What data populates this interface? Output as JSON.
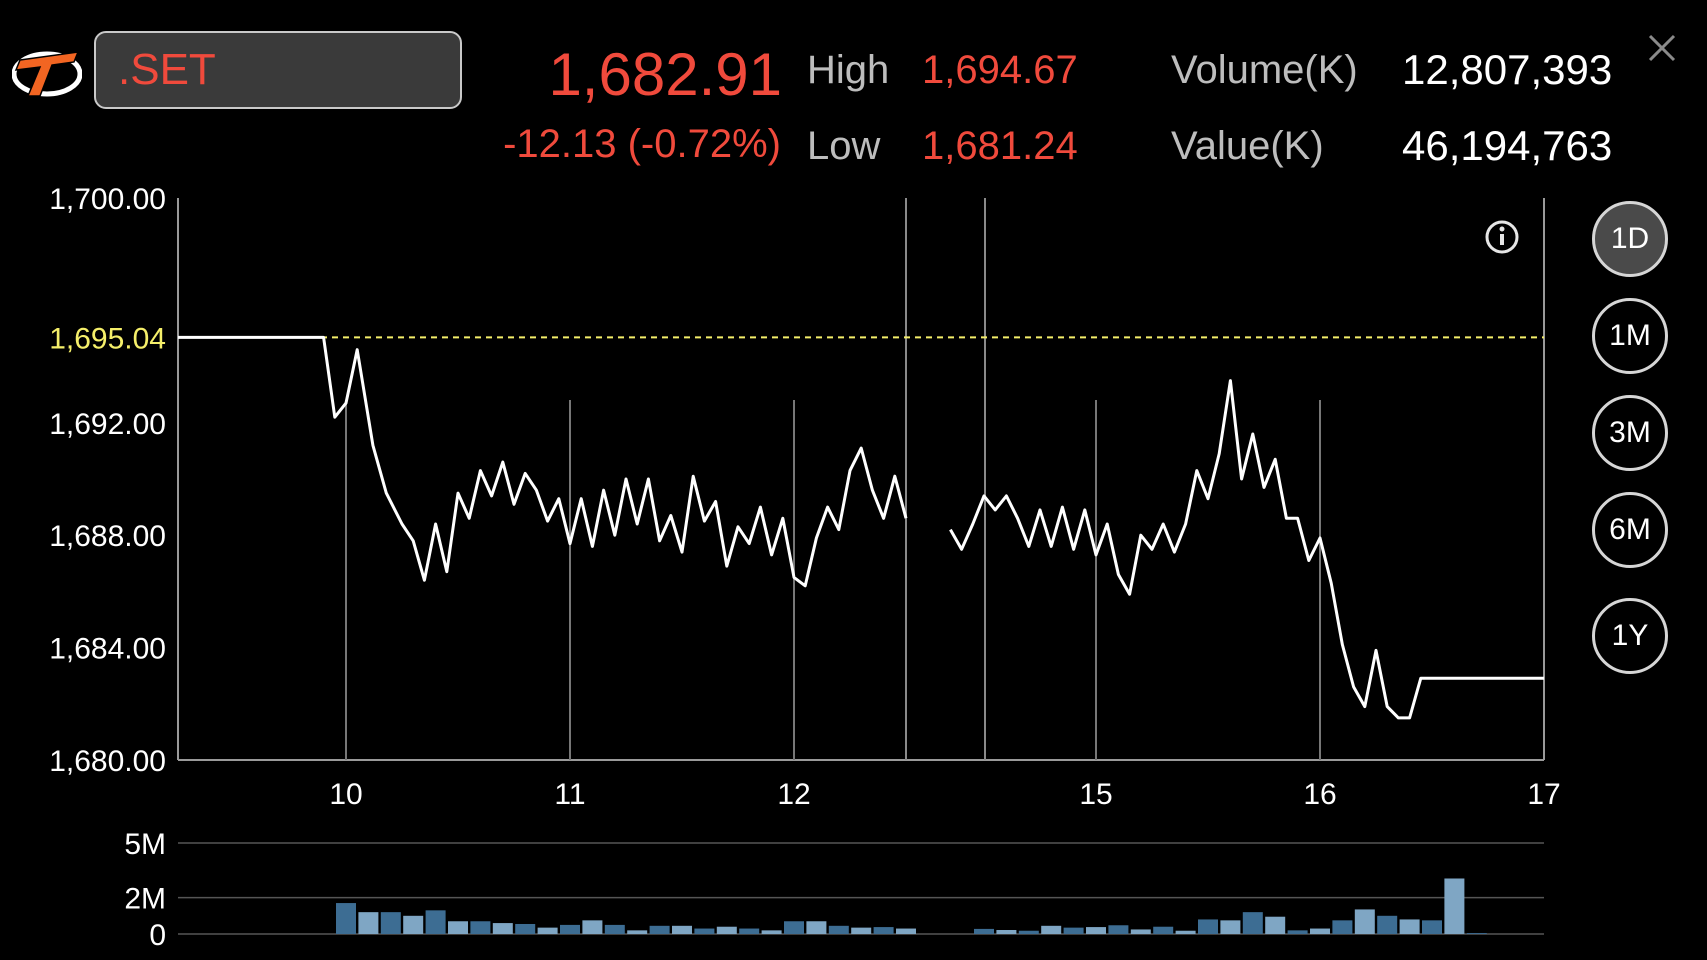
{
  "header": {
    "symbol": ".SET",
    "last": "1,682.91",
    "change": "-12.13 (-0.72%)",
    "high_label": "High",
    "high": "1,694.67",
    "low_label": "Low",
    "low": "1,681.24",
    "volume_label": "Volume(K)",
    "volume": "12,807,393",
    "value_label": "Value(K)",
    "value": "46,194,763"
  },
  "ranges": [
    {
      "label": "1D",
      "active": true
    },
    {
      "label": "1M",
      "active": false
    },
    {
      "label": "3M",
      "active": false
    },
    {
      "label": "6M",
      "active": false
    },
    {
      "label": "1Y",
      "active": false
    }
  ],
  "colors": {
    "up_down_red": "#f04a3c",
    "prior_close": "#f5ef6a",
    "line": "#ffffff",
    "volume_bar": "#3d6d93",
    "volume_bar_alt": "#7fa6c4"
  },
  "icons": {
    "info": "info-icon",
    "close": "close-icon",
    "logo": "broker-logo-icon"
  },
  "chart_data": [
    {
      "type": "line",
      "title": "",
      "ylim": [
        1680,
        1700
      ],
      "y_ticks": [
        "1,700.00",
        "1,692.00",
        "1,688.00",
        "1,684.00",
        "1,680.00"
      ],
      "y_tick_values": [
        1700,
        1692,
        1688,
        1684,
        1680
      ],
      "reference_line": {
        "label": "1,695.04",
        "value": 1695.04
      },
      "x_ticks": [
        "10",
        "11",
        "12",
        "15",
        "16",
        "17"
      ],
      "x_tick_hours": [
        10,
        11,
        12,
        15,
        16,
        17
      ],
      "session_break": [
        12.5,
        14.35
      ],
      "grid": true,
      "series": [
        {
          "segments": [
            [
              [
                9.25,
                1695.04
              ],
              [
                9.9,
                1695.04
              ],
              [
                9.95,
                1692.2
              ],
              [
                10.0,
                1692.7
              ],
              [
                10.05,
                1694.6
              ],
              [
                10.12,
                1691.2
              ],
              [
                10.18,
                1689.5
              ],
              [
                10.25,
                1688.4
              ],
              [
                10.3,
                1687.8
              ],
              [
                10.35,
                1686.4
              ],
              [
                10.4,
                1688.4
              ],
              [
                10.45,
                1686.7
              ],
              [
                10.5,
                1689.5
              ],
              [
                10.55,
                1688.6
              ],
              [
                10.6,
                1690.3
              ],
              [
                10.65,
                1689.4
              ],
              [
                10.7,
                1690.6
              ],
              [
                10.75,
                1689.1
              ],
              [
                10.8,
                1690.2
              ],
              [
                10.85,
                1689.6
              ],
              [
                10.9,
                1688.5
              ],
              [
                10.95,
                1689.3
              ],
              [
                11.0,
                1687.7
              ],
              [
                11.05,
                1689.3
              ],
              [
                11.1,
                1687.6
              ],
              [
                11.15,
                1689.6
              ],
              [
                11.2,
                1688.0
              ],
              [
                11.25,
                1690.0
              ],
              [
                11.3,
                1688.4
              ],
              [
                11.35,
                1690.0
              ],
              [
                11.4,
                1687.8
              ],
              [
                11.45,
                1688.7
              ],
              [
                11.5,
                1687.4
              ],
              [
                11.55,
                1690.1
              ],
              [
                11.6,
                1688.5
              ],
              [
                11.65,
                1689.2
              ],
              [
                11.7,
                1686.9
              ],
              [
                11.75,
                1688.3
              ],
              [
                11.8,
                1687.7
              ],
              [
                11.85,
                1689.0
              ],
              [
                11.9,
                1687.3
              ],
              [
                11.95,
                1688.6
              ],
              [
                12.0,
                1686.5
              ],
              [
                12.05,
                1686.2
              ],
              [
                12.1,
                1687.9
              ],
              [
                12.15,
                1689.0
              ],
              [
                12.2,
                1688.2
              ],
              [
                12.25,
                1690.3
              ],
              [
                12.3,
                1691.1
              ],
              [
                12.35,
                1689.6
              ],
              [
                12.4,
                1688.6
              ],
              [
                12.45,
                1690.1
              ],
              [
                12.5,
                1688.6
              ],
              [
                12.55,
                1688.6
              ]
            ],
            [
              [
                14.35,
                1688.2
              ],
              [
                14.4,
                1687.5
              ],
              [
                14.45,
                1688.4
              ],
              [
                14.5,
                1689.4
              ],
              [
                14.55,
                1688.9
              ],
              [
                14.6,
                1689.4
              ],
              [
                14.65,
                1688.6
              ],
              [
                14.7,
                1687.6
              ],
              [
                14.75,
                1688.9
              ],
              [
                14.8,
                1687.6
              ],
              [
                14.85,
                1689.0
              ],
              [
                14.9,
                1687.5
              ],
              [
                14.95,
                1688.9
              ],
              [
                15.0,
                1687.3
              ],
              [
                15.05,
                1688.4
              ],
              [
                15.1,
                1686.6
              ],
              [
                15.15,
                1685.9
              ],
              [
                15.2,
                1688.0
              ],
              [
                15.25,
                1687.5
              ],
              [
                15.3,
                1688.4
              ],
              [
                15.35,
                1687.4
              ],
              [
                15.4,
                1688.4
              ],
              [
                15.45,
                1690.3
              ],
              [
                15.5,
                1689.3
              ],
              [
                15.55,
                1690.9
              ],
              [
                15.6,
                1693.5
              ],
              [
                15.65,
                1690.0
              ],
              [
                15.7,
                1691.6
              ],
              [
                15.75,
                1689.7
              ],
              [
                15.8,
                1690.7
              ],
              [
                15.85,
                1688.6
              ],
              [
                15.9,
                1688.6
              ],
              [
                15.95,
                1687.1
              ],
              [
                16.0,
                1687.9
              ],
              [
                16.05,
                1686.3
              ],
              [
                16.1,
                1684.1
              ],
              [
                16.15,
                1682.6
              ],
              [
                16.2,
                1681.9
              ],
              [
                16.25,
                1683.9
              ],
              [
                16.3,
                1681.9
              ],
              [
                16.35,
                1681.5
              ],
              [
                16.4,
                1681.5
              ],
              [
                16.45,
                1682.91
              ],
              [
                17.0,
                1682.91
              ]
            ]
          ]
        }
      ]
    },
    {
      "type": "bar",
      "title": "",
      "ylim": [
        0,
        5
      ],
      "y_ticks": [
        "5M",
        "2M",
        "0"
      ],
      "y_tick_values": [
        5,
        2,
        0
      ],
      "grid": true,
      "series": [
        {
          "x": [
            10.0,
            10.1,
            10.2,
            10.3,
            10.4,
            10.5,
            10.6,
            10.7,
            10.8,
            10.9,
            11.0,
            11.1,
            11.2,
            11.3,
            11.4,
            11.5,
            11.6,
            11.7,
            11.8,
            11.9,
            12.0,
            12.1,
            12.2,
            12.3,
            12.4,
            12.5,
            14.5,
            14.6,
            14.7,
            14.8,
            14.9,
            15.0,
            15.1,
            15.2,
            15.3,
            15.4,
            15.5,
            15.6,
            15.7,
            15.8,
            15.9,
            16.0,
            16.1,
            16.2,
            16.3,
            16.4,
            16.5,
            16.6,
            16.7
          ],
          "values": [
            1.7,
            1.2,
            1.2,
            1.0,
            1.3,
            0.7,
            0.7,
            0.6,
            0.55,
            0.35,
            0.5,
            0.75,
            0.5,
            0.2,
            0.45,
            0.45,
            0.3,
            0.4,
            0.3,
            0.2,
            0.7,
            0.7,
            0.45,
            0.35,
            0.38,
            0.3,
            0.28,
            0.22,
            0.18,
            0.45,
            0.35,
            0.38,
            0.48,
            0.25,
            0.4,
            0.18,
            0.8,
            0.75,
            1.2,
            0.95,
            0.2,
            0.3,
            0.75,
            1.35,
            1.0,
            0.8,
            0.75,
            3.05,
            0.05
          ]
        }
      ]
    }
  ]
}
